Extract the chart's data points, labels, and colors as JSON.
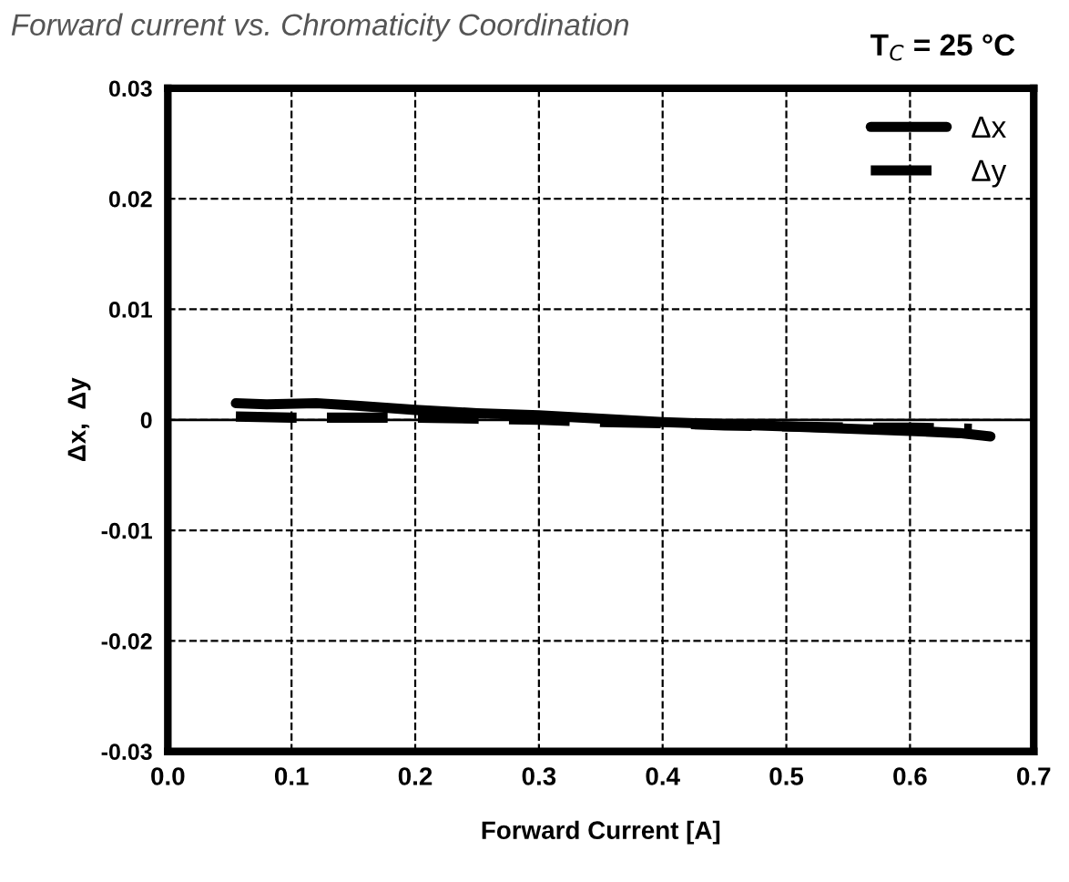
{
  "chart_data": {
    "type": "line",
    "title": "Forward current vs. Chromaticity Coordination",
    "subtitle": "T$_{C}$ = 25 °C",
    "xlabel": "Forward Current [A]",
    "ylabel": "Δx,  Δy",
    "xlim": [
      0.0,
      0.7
    ],
    "xticks": [
      {
        "value": 0,
        "label": "0.0"
      },
      0.1,
      0.2,
      0.3,
      0.4,
      0.5,
      0.6,
      0.7
    ],
    "ylim": [
      -0.03,
      0.03
    ],
    "yticks": [
      {
        "value": -0.03,
        "label": "-0.03"
      },
      {
        "value": -0.02,
        "label": "-0.02"
      },
      {
        "value": -0.01,
        "label": "-0.01"
      },
      0,
      0.01,
      0.02,
      0.03
    ],
    "grid": true,
    "legend": "top right",
    "ref_lines": [
      {
        "axis": "y",
        "value": 0,
        "color": "#000000"
      }
    ],
    "series": [
      {
        "name": "Δx",
        "color": "#000000",
        "line_style": "solid",
        "x": [
          0.055,
          0.08,
          0.12,
          0.15,
          0.2,
          0.25,
          0.3,
          0.35,
          0.4,
          0.45,
          0.5,
          0.55,
          0.6,
          0.64,
          0.665
        ],
        "values": [
          0.0015,
          0.0014,
          0.0015,
          0.0013,
          0.0009,
          0.0006,
          0.0004,
          0.0001,
          -0.0002,
          -0.0004,
          -0.0006,
          -0.0008,
          -0.001,
          -0.0012,
          -0.0015
        ]
      },
      {
        "name": "Δy",
        "color": "#000000",
        "line_style": "dashed",
        "x": [
          0.055,
          0.1,
          0.15,
          0.2,
          0.25,
          0.3,
          0.35,
          0.4,
          0.45,
          0.5,
          0.55,
          0.6,
          0.65
        ],
        "values": [
          0.0003,
          0.0002,
          0.0002,
          0.0002,
          0.0001,
          0.0,
          -0.0002,
          -0.0003,
          -0.0005,
          -0.0006,
          -0.0007,
          -0.0007,
          -0.0008
        ]
      }
    ]
  }
}
